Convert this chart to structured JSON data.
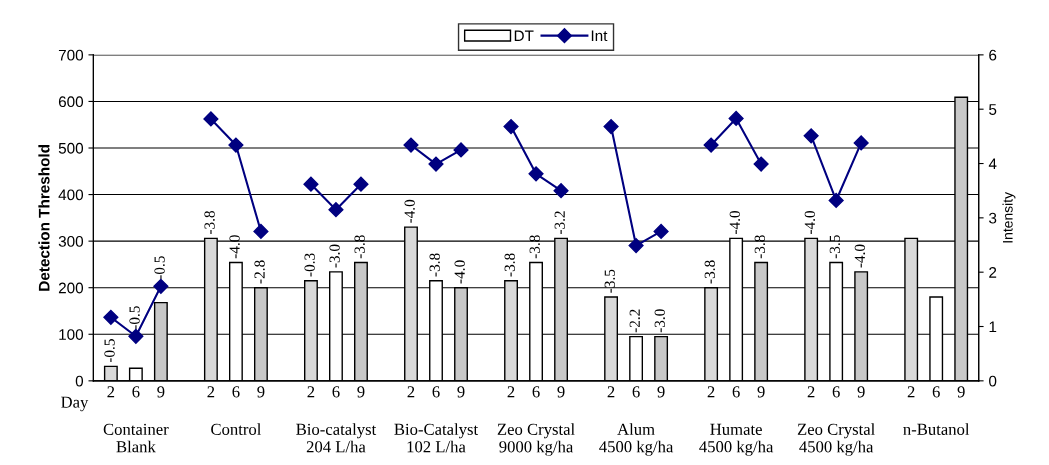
{
  "chart_data": {
    "type": "bar",
    "categories": [
      "2",
      "6",
      "9",
      null,
      "2",
      "6",
      "9",
      null,
      "2",
      "6",
      "9",
      null,
      "2",
      "6",
      "9",
      null,
      "2",
      "6",
      "9",
      null,
      "2",
      "6",
      "9",
      null,
      "2",
      "6",
      "9",
      null,
      "2",
      "6",
      "9",
      null,
      "2",
      "6",
      "9"
    ],
    "ylabel": "Detection Threshold",
    "y2label": "Intensity",
    "ylim": [
      0,
      700
    ],
    "yticks": [
      0,
      100,
      200,
      300,
      400,
      500,
      600,
      700
    ],
    "y2lim": [
      0,
      6
    ],
    "y2ticks": [
      0,
      1,
      2,
      3,
      4,
      5,
      6
    ],
    "grid": "y",
    "legend": "top",
    "annotations": [
      "Day",
      "Container\nBlank",
      "Control",
      "Bio-catalyst\n204 L/ha",
      "Bio-Catalyst\n102 L/ha",
      "Zeo Crystal\n9000 kg/ha",
      "Alum\n4500 kg/ha",
      "Humate\n4500 kg/ha",
      "Zeo Crystal\n4500 kg/ha",
      "n-Butanol",
      "-0.5",
      "-0.5",
      "-0.5",
      "-3.8",
      "-4.0",
      "-2.8",
      "-0.3",
      "-3.0",
      "-3.8",
      "-4.0",
      "-3.8",
      "-4.0",
      "-3.8",
      "-3.8",
      "-3.2",
      "-3.5",
      "-2.2",
      "-3.0",
      "-3.8",
      "-4.0",
      "-3.8",
      "-4.0",
      "-3.5",
      "-4.0"
    ],
    "series": [
      {
        "name": "DT",
        "color": "#ffffff",
        "colors": [
          "#d9d9d9",
          "#ffffff",
          "#c8c8c8",
          null,
          "#d9d9d9",
          "#ffffff",
          "#c8c8c8",
          null,
          "#d9d9d9",
          "#ffffff",
          "#c8c8c8",
          null,
          "#d9d9d9",
          "#ffffff",
          "#c8c8c8",
          null,
          "#d9d9d9",
          "#ffffff",
          "#c8c8c8",
          null,
          "#d9d9d9",
          "#ffffff",
          "#c8c8c8",
          null,
          "#d9d9d9",
          "#ffffff",
          "#c8c8c8",
          null,
          "#d9d9d9",
          "#ffffff",
          "#c8c8c8",
          null,
          "#d9d9d9",
          "#ffffff",
          "#c8c8c8"
        ],
        "values": [
          31,
          27,
          168,
          null,
          306,
          254,
          200,
          null,
          215,
          234,
          254,
          null,
          330,
          215,
          200,
          null,
          215,
          254,
          306,
          null,
          180,
          95,
          95,
          null,
          200,
          306,
          254,
          null,
          306,
          254,
          234,
          null,
          306,
          180,
          609
        ]
      },
      {
        "name": "Int",
        "type": "line",
        "axis": "y2",
        "color": "#000080",
        "marker": "diamond",
        "line_style": "solid",
        "values": [
          1.17,
          0.82,
          1.74,
          null,
          4.82,
          4.34,
          2.75,
          null,
          3.62,
          3.15,
          3.62,
          null,
          4.34,
          3.99,
          4.25,
          null,
          4.68,
          3.81,
          3.5,
          null,
          4.68,
          2.49,
          2.75,
          null,
          4.34,
          4.83,
          3.99,
          null,
          4.51,
          3.32,
          4.38,
          null,
          null,
          null,
          null
        ]
      }
    ]
  }
}
